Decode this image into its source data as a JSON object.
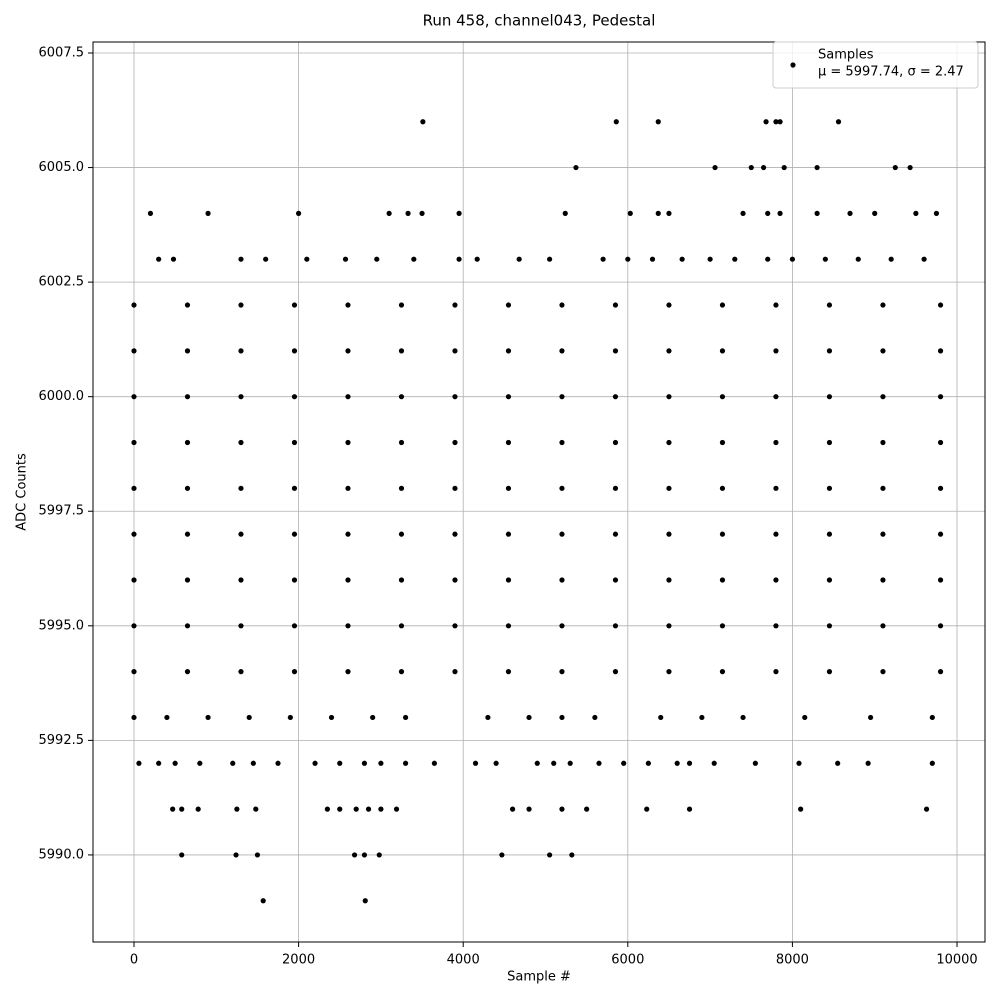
{
  "chart_data": {
    "type": "scatter",
    "title": "Run 458, channel043, Pedestal",
    "xlabel": "Sample #",
    "ylabel": "ADC Counts",
    "xlim": [
      -498,
      10340
    ],
    "xticks": [
      0,
      2000,
      4000,
      6000,
      8000,
      10000
    ],
    "ylim": [
      5988.1,
      6007.74
    ],
    "yticks": [
      {
        "value": 5990,
        "label": "5990.0"
      },
      {
        "value": 5992.5,
        "label": "5992.5"
      },
      {
        "value": 5995,
        "label": "5995.0"
      },
      {
        "value": 5997.5,
        "label": "5997.5"
      },
      {
        "value": 6000,
        "label": "6000.0"
      },
      {
        "value": 6002.5,
        "label": "6002.5"
      },
      {
        "value": 6005,
        "label": "6005.0"
      },
      {
        "value": 6007.5,
        "label": "6007.5"
      }
    ],
    "grid": true,
    "legend": "upper right",
    "legend_note": "μ = 5997.74, σ = 2.47",
    "series": [
      {
        "name": "Samples",
        "color": "#000000",
        "x": [
          0,
          650,
          1300,
          1950,
          2600,
          3250,
          3900,
          4550,
          5200,
          5850,
          6500,
          7150,
          7800,
          8450,
          9100,
          9800,
          0,
          650,
          1300,
          1950,
          2600,
          3250,
          3900,
          4550,
          5200,
          5850,
          6500,
          7150,
          7800,
          8450,
          9100,
          9800,
          0,
          650,
          1300,
          1950,
          2600,
          3250,
          3900,
          4550,
          5200,
          5850,
          6500,
          7150,
          7800,
          8450,
          9100,
          9800,
          0,
          650,
          1300,
          1950,
          2600,
          3250,
          3900,
          4550,
          5200,
          5850,
          6500,
          7150,
          7800,
          8450,
          9100,
          9800,
          0,
          650,
          1300,
          1950,
          2600,
          3250,
          3900,
          4550,
          5200,
          5850,
          6500,
          7150,
          7800,
          8450,
          9100,
          9800,
          0,
          650,
          1300,
          1950,
          2600,
          3250,
          3900,
          4550,
          5200,
          5850,
          6500,
          7150,
          7800,
          8450,
          9100,
          9800,
          0,
          650,
          1300,
          1950,
          2600,
          3250,
          3900,
          4550,
          5200,
          5850,
          6500,
          7150,
          7800,
          8450,
          9100,
          9800,
          0,
          650,
          1300,
          1950,
          2600,
          3250,
          3900,
          4550,
          5200,
          5850,
          6500,
          7150,
          7800,
          8450,
          9100,
          9800,
          0,
          650,
          1300,
          1950,
          2600,
          3250,
          3900,
          4550,
          5200,
          5850,
          6500,
          7150,
          7800,
          8450,
          9100,
          9800,
          0,
          400,
          900,
          1400,
          1900,
          2400,
          2900,
          3300,
          4300,
          4800,
          5200,
          5600,
          6400,
          6900,
          7400,
          8150,
          8950,
          9700,
          60,
          300,
          500,
          800,
          1200,
          1450,
          1750,
          2200,
          2500,
          2800,
          3000,
          3300,
          3650,
          4150,
          4400,
          4900,
          5100,
          5300,
          5650,
          5950,
          6250,
          6600,
          6750,
          7050,
          7550,
          8080,
          8550,
          8920,
          9700,
          470,
          580,
          780,
          1250,
          1480,
          2350,
          2500,
          2700,
          2850,
          3000,
          3190,
          4600,
          4800,
          5200,
          5500,
          6230,
          6750,
          8100,
          9630,
          580,
          1240,
          1500,
          2680,
          2800,
          2980,
          4470,
          5050,
          5320,
          1570,
          2810,
          300,
          480,
          1300,
          1600,
          2100,
          2570,
          2950,
          3400,
          3950,
          4170,
          4680,
          5050,
          5700,
          6000,
          6300,
          6660,
          7000,
          7300,
          7700,
          8000,
          8400,
          8800,
          9200,
          9600,
          200,
          900,
          2000,
          3100,
          3330,
          3500,
          3950,
          5240,
          6030,
          6370,
          6500,
          7400,
          7700,
          7850,
          8300,
          8700,
          9000,
          9500,
          9750,
          5370,
          7060,
          7500,
          7650,
          7900,
          8300,
          9250,
          9430,
          3510,
          5860,
          6370,
          7680,
          7800,
          7850,
          8560
        ],
        "y": [
          5994,
          5994,
          5994,
          5994,
          5994,
          5994,
          5994,
          5994,
          5994,
          5994,
          5994,
          5994,
          5994,
          5994,
          5994,
          5994,
          5995,
          5995,
          5995,
          5995,
          5995,
          5995,
          5995,
          5995,
          5995,
          5995,
          5995,
          5995,
          5995,
          5995,
          5995,
          5995,
          5996,
          5996,
          5996,
          5996,
          5996,
          5996,
          5996,
          5996,
          5996,
          5996,
          5996,
          5996,
          5996,
          5996,
          5996,
          5996,
          5997,
          5997,
          5997,
          5997,
          5997,
          5997,
          5997,
          5997,
          5997,
          5997,
          5997,
          5997,
          5997,
          5997,
          5997,
          5997,
          5998,
          5998,
          5998,
          5998,
          5998,
          5998,
          5998,
          5998,
          5998,
          5998,
          5998,
          5998,
          5998,
          5998,
          5998,
          5998,
          5999,
          5999,
          5999,
          5999,
          5999,
          5999,
          5999,
          5999,
          5999,
          5999,
          5999,
          5999,
          5999,
          5999,
          5999,
          5999,
          6000,
          6000,
          6000,
          6000,
          6000,
          6000,
          6000,
          6000,
          6000,
          6000,
          6000,
          6000,
          6000,
          6000,
          6000,
          6000,
          6001,
          6001,
          6001,
          6001,
          6001,
          6001,
          6001,
          6001,
          6001,
          6001,
          6001,
          6001,
          6001,
          6001,
          6001,
          6001,
          6002,
          6002,
          6002,
          6002,
          6002,
          6002,
          6002,
          6002,
          6002,
          6002,
          6002,
          6002,
          6002,
          6002,
          6002,
          6002,
          5993,
          5993,
          5993,
          5993,
          5993,
          5993,
          5993,
          5993,
          5993,
          5993,
          5993,
          5993,
          5993,
          5993,
          5993,
          5993,
          5993,
          5993,
          5992,
          5992,
          5992,
          5992,
          5992,
          5992,
          5992,
          5992,
          5992,
          5992,
          5992,
          5992,
          5992,
          5992,
          5992,
          5992,
          5992,
          5992,
          5992,
          5992,
          5992,
          5992,
          5992,
          5992,
          5992,
          5992,
          5992,
          5992,
          5992,
          5991,
          5991,
          5991,
          5991,
          5991,
          5991,
          5991,
          5991,
          5991,
          5991,
          5991,
          5991,
          5991,
          5991,
          5991,
          5991,
          5991,
          5991,
          5991,
          5990,
          5990,
          5990,
          5990,
          5990,
          5990,
          5990,
          5990,
          5990,
          5989,
          5989,
          6003,
          6003,
          6003,
          6003,
          6003,
          6003,
          6003,
          6003,
          6003,
          6003,
          6003,
          6003,
          6003,
          6003,
          6003,
          6003,
          6003,
          6003,
          6003,
          6003,
          6003,
          6003,
          6003,
          6003,
          6004,
          6004,
          6004,
          6004,
          6004,
          6004,
          6004,
          6004,
          6004,
          6004,
          6004,
          6004,
          6004,
          6004,
          6004,
          6004,
          6004,
          6004,
          6004,
          6005,
          6005,
          6005,
          6005,
          6005,
          6005,
          6005,
          6005,
          6006,
          6006,
          6006,
          6006,
          6006,
          6006,
          6006
        ]
      }
    ]
  }
}
